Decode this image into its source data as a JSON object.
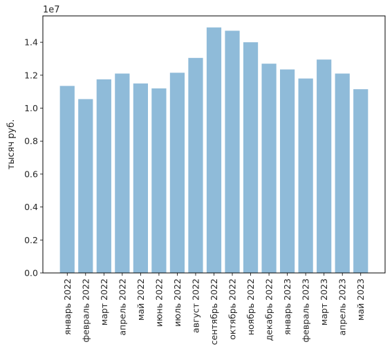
{
  "chart_data": {
    "type": "bar",
    "title": "",
    "xlabel": "",
    "ylabel": "тысяч руб.",
    "offset_text": "1e7",
    "bar_color": "#1f77b4",
    "bar_alpha": 0.5,
    "grid": false,
    "ylim": [
      0,
      15600000
    ],
    "yticks": [
      0,
      2000000,
      4000000,
      6000000,
      8000000,
      10000000,
      12000000,
      14000000
    ],
    "ytick_labels": [
      "0.0",
      "0.2",
      "0.4",
      "0.6",
      "0.8",
      "1.0",
      "1.2",
      "1.4"
    ],
    "categories": [
      "январь 2022",
      "февраль 2022",
      "март 2022",
      "апрель 2022",
      "май 2022",
      "июнь 2022",
      "июль 2022",
      "август 2022",
      "сентябрь 2022",
      "октябрь 2022",
      "ноябрь 2022",
      "декабрь 2022",
      "январь 2023",
      "февраль 2023",
      "март 2023",
      "апрель 2023",
      "май 2023"
    ],
    "values": [
      11350000,
      10550000,
      11750000,
      12100000,
      11500000,
      11200000,
      12150000,
      13050000,
      14900000,
      14700000,
      14000000,
      12700000,
      12350000,
      11800000,
      12950000,
      12100000,
      11150000
    ]
  }
}
